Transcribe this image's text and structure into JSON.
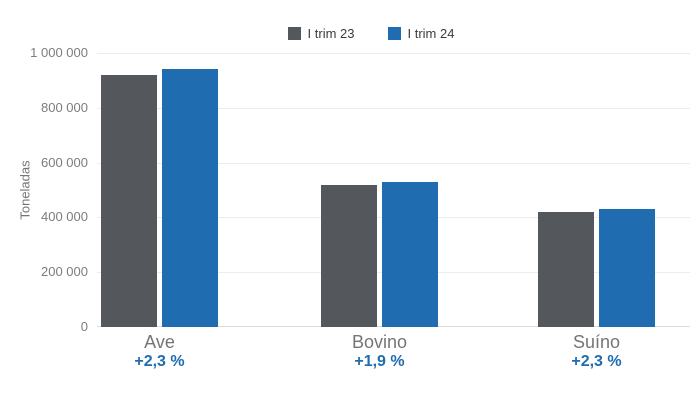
{
  "chart_data": {
    "type": "bar",
    "title": "",
    "categories": [
      "Ave",
      "Bovino",
      "Suíno"
    ],
    "series": [
      {
        "name": "I trim 23",
        "color": "#54575c",
        "values": [
          920000,
          519000,
          419000
        ]
      },
      {
        "name": "I trim 24",
        "color": "#1f6cb0",
        "values": [
          941000,
          529000,
          429000
        ]
      }
    ],
    "change_labels": [
      "+2,3 %",
      "+1,9 %",
      "+2,3 %"
    ],
    "xlabel": "",
    "ylabel": "Toneladas",
    "ylim": [
      0,
      1000000
    ],
    "yticks": [
      0,
      200000,
      400000,
      600000,
      800000,
      1000000
    ],
    "ytick_labels": [
      "0",
      "200 000",
      "400 000",
      "600 000",
      "800 000",
      "1 000 000"
    ],
    "grid": true,
    "legend_position": "top"
  },
  "colors": {
    "background": "#ffffff",
    "grid_line": "#ececec",
    "baseline": "#dcdcdc",
    "tick_text": "#7d7d7d",
    "category_text": "#757575",
    "legend_text": "#3c3c3c",
    "change_text": "#1f6cb0"
  }
}
